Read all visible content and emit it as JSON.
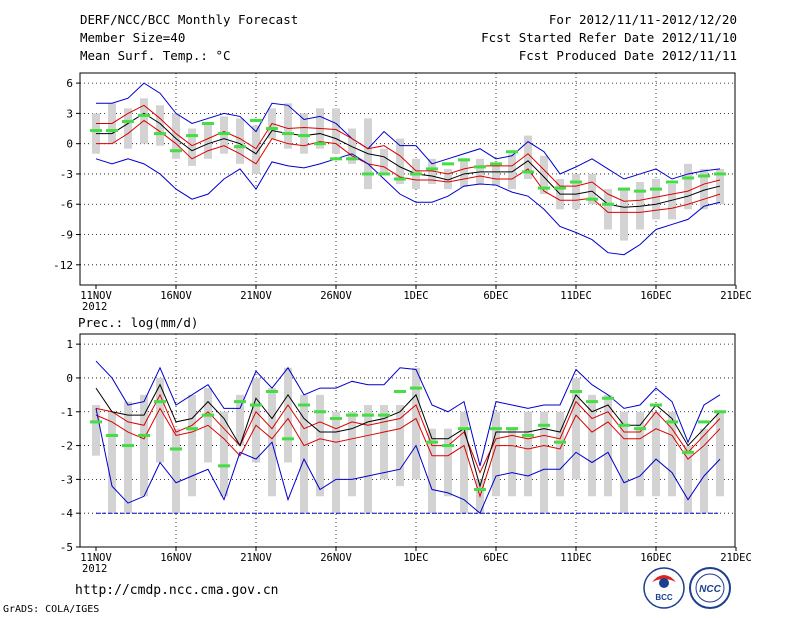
{
  "header": {
    "title": "DERF/NCC/BCC Monthly Forecast",
    "member": "Member Size=40",
    "variable": "Mean Surf. Temp.: °C",
    "period": "For 2012/11/11-2012/12/20",
    "started": "Fcst Started Refer Date 2012/11/10",
    "produced": "Fcst Produced Date 2012/11/11"
  },
  "footer": {
    "url": "http://cmdp.ncc.cma.gov.cn",
    "credit": "GrADS: COLA/IGES",
    "logo_bcc": "BCC",
    "logo_ncc": "NCC"
  },
  "colors": {
    "envelope": "#0000cc",
    "band": "#dd0000",
    "ensemble": "#000000",
    "bar": "#d3d3d3",
    "obs": "#44dd44",
    "floor": "#0000cc"
  },
  "chart_data": [
    {
      "type": "line",
      "title": "Mean Surf. Temp.: °C",
      "ylim": [
        -14,
        7
      ],
      "yticks": [
        6,
        3,
        0,
        -3,
        -6,
        -9,
        -12
      ],
      "xticks": [
        {
          "day": 0,
          "label": "11NOV",
          "sub": "2012"
        },
        {
          "day": 5,
          "label": "16NOV"
        },
        {
          "day": 10,
          "label": "21NOV"
        },
        {
          "day": 15,
          "label": "26NOV"
        },
        {
          "day": 20,
          "label": "1DEC"
        },
        {
          "day": 25,
          "label": "6DEC"
        },
        {
          "day": 30,
          "label": "11DEC"
        },
        {
          "day": 35,
          "label": "16DEC"
        },
        {
          "day": 40,
          "label": "21DEC"
        }
      ],
      "series": [
        {
          "name": "max",
          "values": [
            4,
            4,
            4.5,
            6,
            5,
            3,
            2,
            2.5,
            3,
            2.7,
            1.2,
            4,
            3.8,
            2.4,
            2.7,
            2,
            0.5,
            -0.5,
            1.2,
            -0.2,
            -0.2,
            -2,
            -1.5,
            -1,
            -0.5,
            -1.5,
            -1.2,
            0.2,
            -0.8,
            -3,
            -2.3,
            -1.5,
            -2.5,
            -3.5,
            -3,
            -2.5,
            -3.5,
            -3,
            -2.7,
            -2.5
          ]
        },
        {
          "name": "upper",
          "values": [
            2,
            2,
            3,
            3.8,
            2.5,
            1,
            -0.2,
            0.5,
            1.2,
            0.5,
            -0.5,
            2,
            1.5,
            1.6,
            1.5,
            1.4,
            0.5,
            -0.5,
            -0.2,
            -1.2,
            -2.7,
            -2.7,
            -3,
            -2.5,
            -2.2,
            -2.2,
            -2.2,
            -1,
            -2.6,
            -4.2,
            -4.2,
            -3.8,
            -5,
            -5.7,
            -5.6,
            -5.3,
            -5,
            -4.7,
            -4,
            -3.6
          ]
        },
        {
          "name": "mean",
          "values": [
            1,
            1,
            2,
            3,
            2,
            0.5,
            -0.7,
            0,
            0.5,
            0,
            -1,
            1.3,
            1,
            0.8,
            1,
            0.5,
            -0.3,
            -1,
            -1.3,
            -2.3,
            -3,
            -3.2,
            -3.6,
            -3,
            -2.8,
            -2.8,
            -2.8,
            -1.7,
            -3.3,
            -5,
            -5,
            -4.7,
            -6,
            -6.3,
            -6.2,
            -6,
            -5.6,
            -5.2,
            -4.6,
            -4.2
          ]
        },
        {
          "name": "lower",
          "values": [
            0,
            0,
            1,
            2.3,
            1.2,
            0,
            -1.5,
            -0.7,
            -0.2,
            -1,
            -2,
            0.5,
            0,
            -0.2,
            0.2,
            0,
            -1.2,
            -2,
            -2.3,
            -3.3,
            -3.6,
            -3.6,
            -3.8,
            -3.5,
            -3.2,
            -3.5,
            -3.5,
            -2.5,
            -4.7,
            -5.6,
            -5.6,
            -5.4,
            -6.8,
            -6.8,
            -6.8,
            -6.6,
            -6.4,
            -6,
            -5.5,
            -5
          ]
        },
        {
          "name": "min",
          "values": [
            -1.5,
            -2,
            -1.5,
            -2,
            -3,
            -4.5,
            -5.5,
            -5,
            -3.5,
            -2.5,
            -4.5,
            -1.8,
            -2.2,
            -2.4,
            -2,
            -1.5,
            -1,
            -2,
            -3.5,
            -5,
            -5.8,
            -5.8,
            -5.2,
            -4.2,
            -4,
            -4.1,
            -4.8,
            -5.2,
            -6.5,
            -8.2,
            -8.8,
            -9.5,
            -10.8,
            -11,
            -10,
            -8.5,
            -8,
            -7.5,
            -6.2,
            -5.8
          ]
        }
      ],
      "bars": [
        [
          -1,
          3
        ],
        [
          0,
          4
        ],
        [
          -0.5,
          3.5
        ],
        [
          0,
          4.5
        ],
        [
          -0.2,
          3.8
        ],
        [
          -1.5,
          3
        ],
        [
          -2.2,
          1.5
        ],
        [
          -1.5,
          2
        ],
        [
          -1,
          2.7
        ],
        [
          -2,
          2.5
        ],
        [
          -3,
          1.8
        ],
        [
          0.5,
          3.5
        ],
        [
          -0.5,
          4
        ],
        [
          -1,
          3
        ],
        [
          -0.5,
          3.5
        ],
        [
          -1,
          3.5
        ],
        [
          -2,
          1.5
        ],
        [
          -4.5,
          2.5
        ],
        [
          -3,
          -0.5
        ],
        [
          -4,
          0.5
        ],
        [
          -4.5,
          -1.5
        ],
        [
          -4,
          -1.5
        ],
        [
          -4.5,
          -2.5
        ],
        [
          -4.3,
          -1.5
        ],
        [
          -4,
          -1.5
        ],
        [
          -4.2,
          -2
        ],
        [
          -4.5,
          -1
        ],
        [
          -3.5,
          0.8
        ],
        [
          -5,
          -1.2
        ],
        [
          -6.5,
          -3.5
        ],
        [
          -6.5,
          -3
        ],
        [
          -6,
          -3
        ],
        [
          -8.5,
          -4.5
        ],
        [
          -9.6,
          -4.5
        ],
        [
          -8.5,
          -3.8
        ],
        [
          -7.5,
          -3.5
        ],
        [
          -7.5,
          -4
        ],
        [
          -6.5,
          -2
        ],
        [
          -6.5,
          -2.5
        ],
        [
          -6,
          -2.5
        ]
      ],
      "observed": [
        1.3,
        1.3,
        2.2,
        2.8,
        1,
        -0.7,
        0.8,
        2,
        1,
        -0.3,
        2.3,
        1.5,
        1,
        0.8,
        0,
        -1.5,
        -1.5,
        -3,
        -3,
        -3.5,
        -3,
        -2.5,
        -2,
        -1.6,
        -2.3,
        -2,
        -0.8,
        -2.8,
        -4.4,
        -4.4,
        -3.8,
        -5.5,
        -6,
        -4.5,
        -4.7,
        -4.5,
        -3.8,
        -3.4,
        -3.2,
        -3
      ]
    },
    {
      "type": "line",
      "title": "Prec.: log(mm/d)",
      "ylim": [
        -5,
        1.3
      ],
      "yticks": [
        1,
        0,
        -1,
        -2,
        -3,
        -4,
        -5
      ],
      "xticks": [
        {
          "day": 0,
          "label": "11NOV",
          "sub": "2012"
        },
        {
          "day": 5,
          "label": "16NOV"
        },
        {
          "day": 10,
          "label": "21NOV"
        },
        {
          "day": 15,
          "label": "26NOV"
        },
        {
          "day": 20,
          "label": "1DEC"
        },
        {
          "day": 25,
          "label": "6DEC"
        },
        {
          "day": 30,
          "label": "11DEC"
        },
        {
          "day": 35,
          "label": "16DEC"
        },
        {
          "day": 40,
          "label": "21DEC"
        }
      ],
      "series": [
        {
          "name": "max",
          "values": [
            0.5,
            0,
            -0.8,
            -0.7,
            0.3,
            -0.8,
            -0.5,
            -0.2,
            -0.9,
            -0.9,
            0.2,
            -0.3,
            0.3,
            -0.5,
            -0.3,
            -0.3,
            -0.1,
            -0.2,
            -0.2,
            0.3,
            0.25,
            -0.8,
            -1,
            -0.7,
            -2.6,
            -0.7,
            -0.8,
            -0.9,
            -0.8,
            -0.8,
            0.25,
            -0.2,
            -0.5,
            -0.9,
            -0.8,
            -0.3,
            -0.7,
            -1.9,
            -0.8,
            -0.5
          ]
        },
        {
          "name": "upper",
          "values": [
            -0.9,
            -1,
            -1.3,
            -1.4,
            -0.5,
            -1.6,
            -1.4,
            -1,
            -1.5,
            -2,
            -1,
            -1.5,
            -0.8,
            -1.5,
            -1.3,
            -1.5,
            -1.3,
            -1.4,
            -1.3,
            -1.2,
            -0.8,
            -2,
            -2,
            -1.6,
            -2.8,
            -1.8,
            -1.7,
            -1.8,
            -1.7,
            -1.8,
            -0.7,
            -1.2,
            -1,
            -1.6,
            -1.6,
            -1,
            -1.5,
            -2.2,
            -1.7,
            -1.2
          ]
        },
        {
          "name": "mean",
          "values": [
            -0.3,
            -1,
            -1.1,
            -1.1,
            -0.2,
            -1.3,
            -1.2,
            -0.7,
            -1.2,
            -2,
            -0.6,
            -1.2,
            -0.5,
            -1.2,
            -1.6,
            -1.6,
            -1.5,
            -1.3,
            -1.2,
            -1,
            -0.5,
            -1.8,
            -1.8,
            -1.5,
            -3.2,
            -1.6,
            -1.6,
            -1.6,
            -1.5,
            -1.6,
            -0.5,
            -1,
            -0.8,
            -1.4,
            -1.4,
            -0.8,
            -1.2,
            -2,
            -1.5,
            -1
          ]
        },
        {
          "name": "lower",
          "values": [
            -1.1,
            -1.3,
            -1.6,
            -1.8,
            -0.9,
            -1.7,
            -1.6,
            -1.4,
            -1.8,
            -2.3,
            -1.4,
            -1.8,
            -1.2,
            -2,
            -1.8,
            -1.9,
            -1.8,
            -1.7,
            -1.6,
            -1.5,
            -1.2,
            -2.3,
            -2.3,
            -2,
            -3.5,
            -2,
            -2,
            -2.1,
            -2,
            -2.1,
            -1.1,
            -1.6,
            -1.3,
            -1.8,
            -1.8,
            -1.5,
            -1.7,
            -2.4,
            -2,
            -1.5
          ]
        },
        {
          "name": "min",
          "values": [
            -0.9,
            -3.2,
            -3.7,
            -3.5,
            -2.5,
            -3.1,
            -2.9,
            -2.7,
            -3.6,
            -2.2,
            -2.4,
            -1.9,
            -3.6,
            -2.4,
            -3.3,
            -3,
            -3,
            -2.9,
            -2.8,
            -2.7,
            -2,
            -3.3,
            -3.4,
            -3.6,
            -4,
            -2.9,
            -2.8,
            -2.9,
            -2.7,
            -2.7,
            -2.2,
            -2.5,
            -2.2,
            -3.1,
            -2.9,
            -2.4,
            -2.8,
            -3.6,
            -2.9,
            -2.4
          ]
        }
      ],
      "bars": [
        [
          -2.3,
          -0.8
        ],
        [
          -4,
          -1
        ],
        [
          -4,
          -0.7
        ],
        [
          -3.5,
          -0.5
        ],
        [
          -2.5,
          0
        ],
        [
          -4,
          -1.5
        ],
        [
          -3.5,
          -0.5
        ],
        [
          -2.5,
          -0.3
        ],
        [
          -3.5,
          -1
        ],
        [
          -2,
          -0.5
        ],
        [
          -2.5,
          0
        ],
        [
          -3.5,
          -0.3
        ],
        [
          -2.5,
          0.3
        ],
        [
          -4,
          -0.5
        ],
        [
          -3.5,
          -0.5
        ],
        [
          -4,
          -1
        ],
        [
          -3.5,
          -1
        ],
        [
          -4,
          -0.8
        ],
        [
          -3,
          -0.8
        ],
        [
          -3.2,
          -0.8
        ],
        [
          -3,
          0.3
        ],
        [
          -4,
          -1.5
        ],
        [
          -3.5,
          -1.5
        ],
        [
          -4,
          -1
        ],
        [
          -4,
          -3
        ],
        [
          -3.5,
          -1
        ],
        [
          -3.5,
          -1.5
        ],
        [
          -3.5,
          -1
        ],
        [
          -4,
          -1
        ],
        [
          -3.5,
          -1
        ],
        [
          -3,
          0
        ],
        [
          -3.5,
          -0.5
        ],
        [
          -3.5,
          -0.5
        ],
        [
          -4,
          -1
        ],
        [
          -3.5,
          -1
        ],
        [
          -3.5,
          -1
        ],
        [
          -3.5,
          -1
        ],
        [
          -4,
          -2
        ],
        [
          -4,
          -1.5
        ],
        [
          -3.5,
          -1
        ]
      ],
      "observed": [
        -1.3,
        -1.7,
        -2,
        -1.7,
        -0.7,
        -2.1,
        -1.5,
        -1.1,
        -2.6,
        -0.7,
        -0.8,
        -0.4,
        -1.8,
        -0.8,
        -1,
        -1.2,
        -1.1,
        -1.1,
        -1.1,
        -0.4,
        -0.3,
        -1.9,
        -2,
        -1.5,
        -3.3,
        -1.5,
        -1.5,
        -1.7,
        -1.4,
        -1.9,
        -0.4,
        -0.7,
        -0.6,
        -1.4,
        -1.5,
        -0.8,
        -1.3,
        -2.2,
        -1.3,
        -1
      ],
      "floor": -4
    }
  ]
}
